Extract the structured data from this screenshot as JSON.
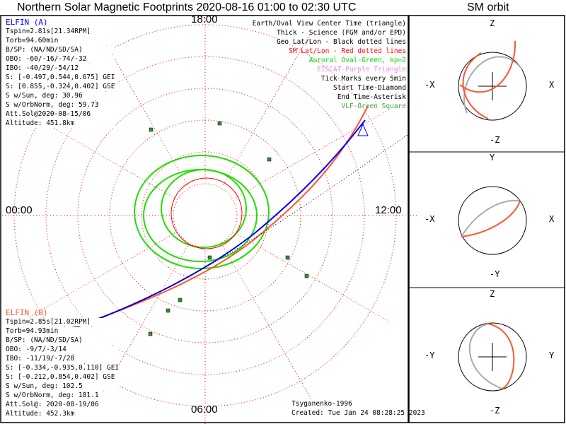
{
  "title": "Northern Solar Magnetic Footprints 2020-08-16 01:00 to 02:30 UTC",
  "orbit_title": "SM orbit",
  "map": {
    "hour_labels": {
      "top": "18:00",
      "left": "00:00",
      "right": "12:00",
      "bottom": "06:00"
    }
  },
  "elfin_a": {
    "name": "ELFIN (A)",
    "color": "#0000ff",
    "lines": [
      "Tspin=2.81s[21.34RPM]",
      "Torb=94.60min",
      "B/SP: (NA/ND/SD/SA)",
      "OBO: -60/-16/-74/-32",
      "IBO: -40/29/-54/12",
      "S: [-0.497,0.544,0.675] GEI",
      "S: [0.855,-0.324,0.402] GSE",
      "S w/Sun, deg: 30.96",
      "S w/OrbNorm, deg: 59.73",
      "Att.Sol@2020-08-15/06",
      "Altitude: 451.8km"
    ]
  },
  "elfin_b": {
    "name": "ELFIN (B)",
    "color": "#ff5533",
    "lines": [
      "Tspin=2.85s[21.02RPM]",
      "Torb=94.93min",
      "B/SP: (NA/ND/SD/SA)",
      "OBO: -9/7/-3/14",
      "IBO: -11/19/-7/28",
      "S: [-0.334,-0.935,0.110] GEI",
      "S: [-0.212,0.854,0.402] GSE",
      "S w/Sun, deg: 102.5",
      "S w/OrbNorm, deg: 181.1",
      "Att.Sol@: 2020-08-19/06",
      "Altitude: 452.3km"
    ]
  },
  "legend": [
    {
      "text": "Earth/Oval View Center Time (triangle)",
      "color": "#000000"
    },
    {
      "text": "Thick - Science (FGM and/or EPD)",
      "color": "#000000"
    },
    {
      "text": "Geo Lat/Lon - Black dotted lines",
      "color": "#000000"
    },
    {
      "text": "SM Lat/Lon - Red dotted lines",
      "color": "#ff0000"
    },
    {
      "text": "Auroral Oval-Green, kp=2",
      "color": "#00dd00"
    },
    {
      "text": "EISCAT-Purple Triangle",
      "color": "#ee82ee"
    },
    {
      "text": "Tick Marks every 5min",
      "color": "#000000"
    },
    {
      "text": "Start Time-Diamond",
      "color": "#000000"
    },
    {
      "text": "End Time-Asterisk",
      "color": "#000000"
    },
    {
      "text": "VLF-Green Square",
      "color": "#44aa44"
    }
  ],
  "credit": "Tsyganenko-1996",
  "created": "Created: Tue Jan 24 08:28:25 2023",
  "panels": [
    {
      "top": "Z",
      "bottom": "-Z",
      "left": "-X",
      "right": "X"
    },
    {
      "top": "Y",
      "bottom": "-Y",
      "left": "-X",
      "right": "X"
    },
    {
      "top": "Z",
      "bottom": "-Z",
      "left": "-Y",
      "right": "Y"
    }
  ],
  "chart_data": {
    "type": "scatter",
    "title": "Northern Solar Magnetic Footprints 2020-08-16 01:00 to 02:30 UTC",
    "projection": "north polar, SM MLT",
    "mlt_labels": [
      "18:00",
      "00:00",
      "12:00",
      "06:00"
    ],
    "series": [
      {
        "name": "ELFIN (A)",
        "color": "#0000ff"
      },
      {
        "name": "ELFIN (B)",
        "color": "#ff5533"
      }
    ]
  }
}
